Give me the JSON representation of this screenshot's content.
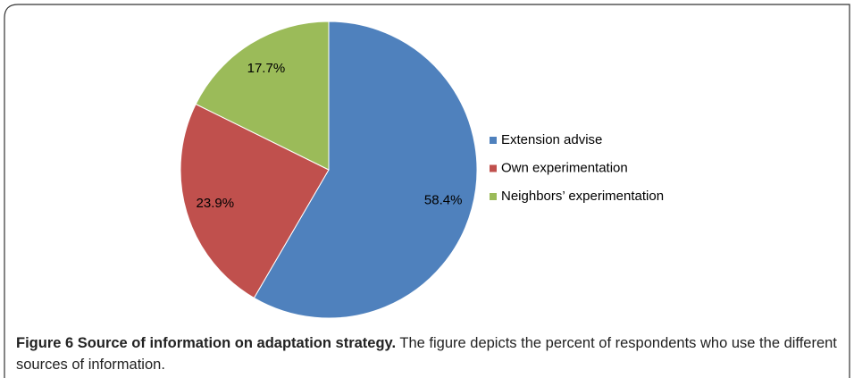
{
  "chart_data": {
    "type": "pie",
    "categories": [
      "Extension advise",
      "Own experimentation",
      "Neighbors’ experimentation"
    ],
    "values": [
      58.4,
      23.9,
      17.7
    ],
    "value_labels": [
      "58.4%",
      "23.9%",
      "17.7%"
    ],
    "colors": [
      "#4f81bd",
      "#c0504d",
      "#9bbb59"
    ],
    "legend": "right"
  },
  "caption": {
    "label": "Figure 6",
    "title": "Source of information on adaptation strategy.",
    "text": "The figure depicts the percent of respondents who use the different sources of information."
  }
}
